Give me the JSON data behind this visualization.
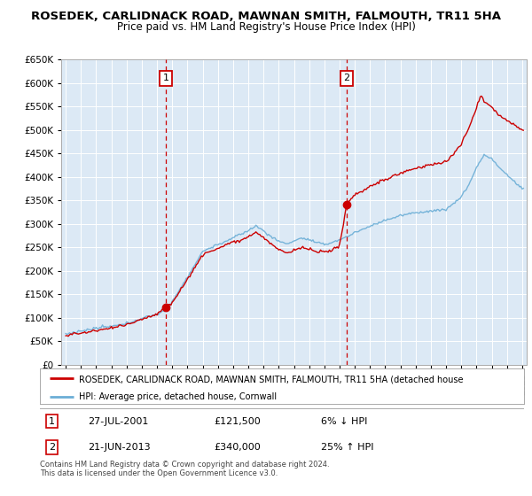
{
  "title": "ROSEDEK, CARLIDNACK ROAD, MAWNAN SMITH, FALMOUTH, TR11 5HA",
  "subtitle": "Price paid vs. HM Land Registry's House Price Index (HPI)",
  "legend_line1": "ROSEDEK, CARLIDNACK ROAD, MAWNAN SMITH, FALMOUTH, TR11 5HA (detached house",
  "legend_line2": "HPI: Average price, detached house, Cornwall",
  "footnote": "Contains HM Land Registry data © Crown copyright and database right 2024.\nThis data is licensed under the Open Government Licence v3.0.",
  "table": [
    {
      "num": "1",
      "date": "27-JUL-2001",
      "price": "£121,500",
      "change": "6% ↓ HPI"
    },
    {
      "num": "2",
      "date": "21-JUN-2013",
      "price": "£340,000",
      "change": "25% ↑ HPI"
    }
  ],
  "sale1_year": 2001.58,
  "sale1_price": 121500,
  "sale2_year": 2013.47,
  "sale2_price": 340000,
  "red_line_color": "#cc0000",
  "blue_line_color": "#6baed6",
  "dashed_color": "#cc0000",
  "plot_bg": "#dce9f5",
  "highlight_bg": "#c8dff0",
  "ylim_max": 650000,
  "xlim_start": 1994.7,
  "xlim_end": 2025.3,
  "ytick_step": 50000,
  "grid_color": "#ffffff",
  "title_fontsize": 9.5,
  "subtitle_fontsize": 8.5
}
